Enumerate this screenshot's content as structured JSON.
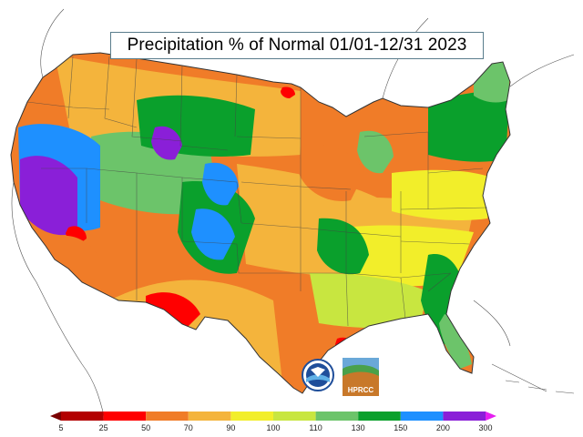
{
  "title": "Precipitation % of Normal 01/01-12/31 2023",
  "legend": {
    "labels": [
      "5",
      "25",
      "50",
      "70",
      "90",
      "100",
      "110",
      "130",
      "150",
      "200",
      "300"
    ],
    "bins": [
      {
        "range": "<5",
        "color": "#7a0000"
      },
      {
        "range": "5-25",
        "color": "#b30000"
      },
      {
        "range": "25-50",
        "color": "#ff0000"
      },
      {
        "range": "50-70",
        "color": "#f07c28"
      },
      {
        "range": "70-90",
        "color": "#f4b43c"
      },
      {
        "range": "90-100",
        "color": "#f2ee2a"
      },
      {
        "range": "100-110",
        "color": "#c8e640"
      },
      {
        "range": "110-130",
        "color": "#6cc46a"
      },
      {
        "range": "130-150",
        "color": "#0aa02c"
      },
      {
        "range": "150-200",
        "color": "#1e90ff"
      },
      {
        "range": "200-300",
        "color": "#8a1fd8"
      },
      {
        "range": ">300",
        "color": "#e51ff0"
      }
    ]
  },
  "logos": [
    {
      "name": "NOAA",
      "icon": "noaa-logo"
    },
    {
      "name": "HPRCC",
      "icon": "hprcc-logo"
    }
  ]
}
